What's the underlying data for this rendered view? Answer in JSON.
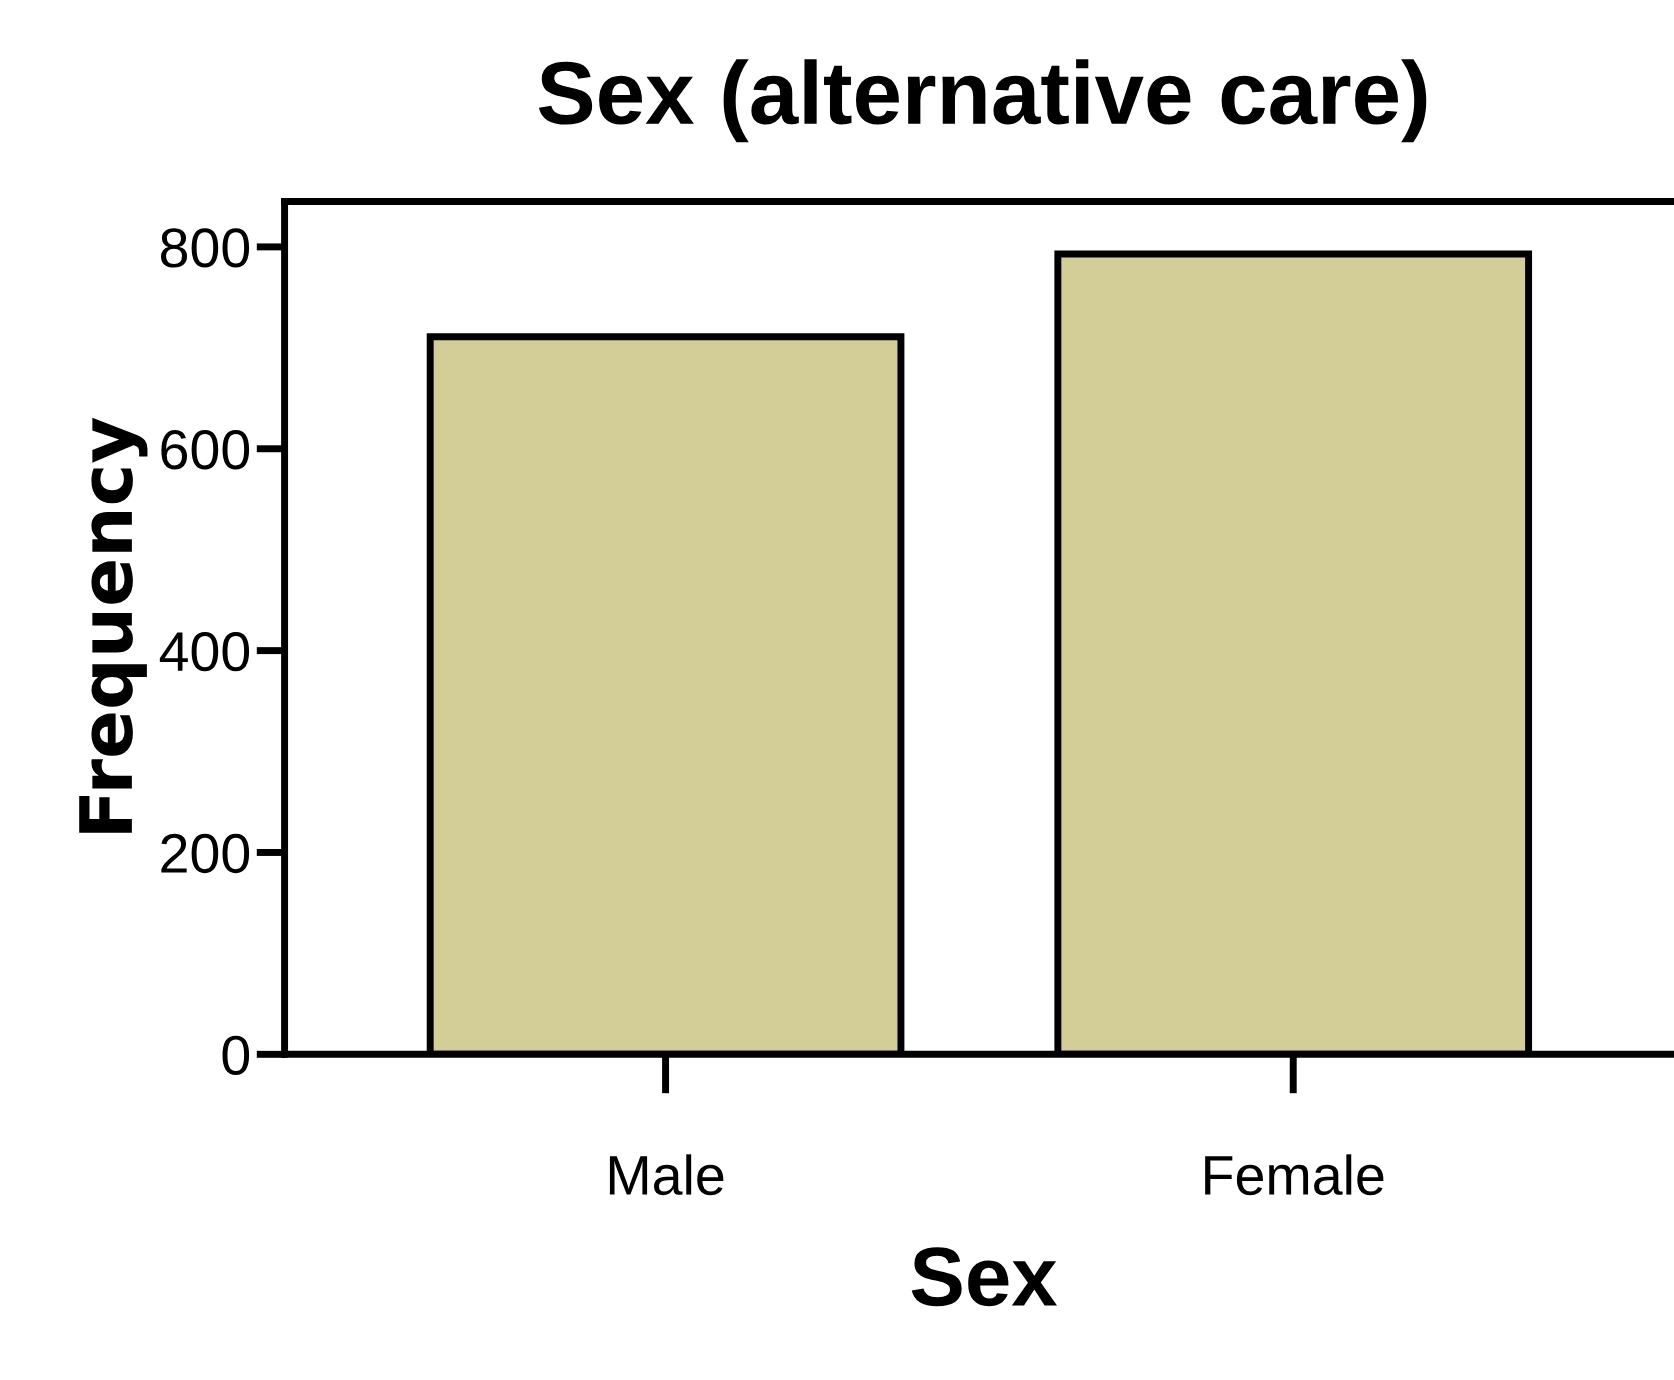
{
  "chart_data": {
    "type": "bar",
    "title": "Sex (alternative care)",
    "xlabel": "Sex",
    "ylabel": "Frequency",
    "categories": [
      "Male",
      "Female"
    ],
    "values": [
      711,
      793
    ],
    "color": "#d3ce98",
    "ylim": [
      0,
      845
    ],
    "yticks": [
      0,
      200,
      400,
      600,
      800
    ],
    "grid": false,
    "legend": false
  }
}
